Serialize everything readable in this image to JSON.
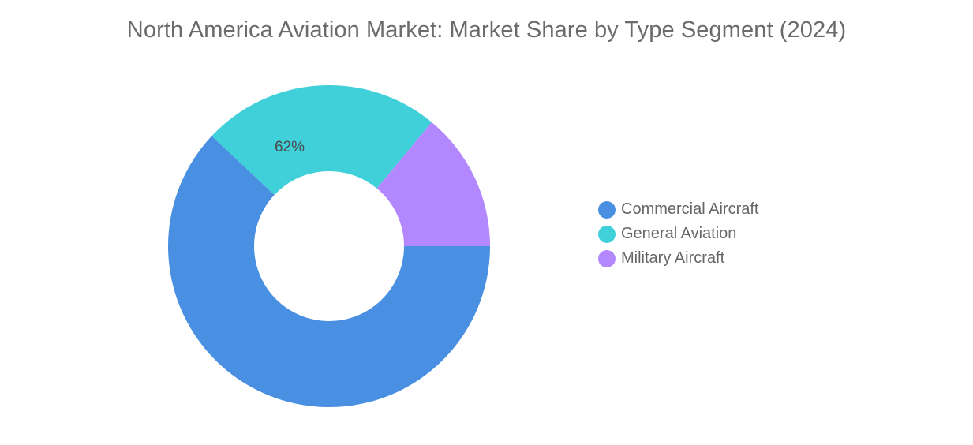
{
  "chart_data": {
    "type": "pie",
    "variant": "donut",
    "title": "North America Aviation Market: Market Share by Type Segment (2024)",
    "categories": [
      "Commercial Aircraft",
      "General Aviation",
      "Military Aircraft"
    ],
    "values": [
      62,
      24,
      14
    ],
    "colors": [
      "#4a90e2",
      "#3fd0da",
      "#b388ff"
    ],
    "data_labels": [
      "62%",
      "",
      ""
    ],
    "legend_position": "right",
    "start_angle_deg": 90
  }
}
